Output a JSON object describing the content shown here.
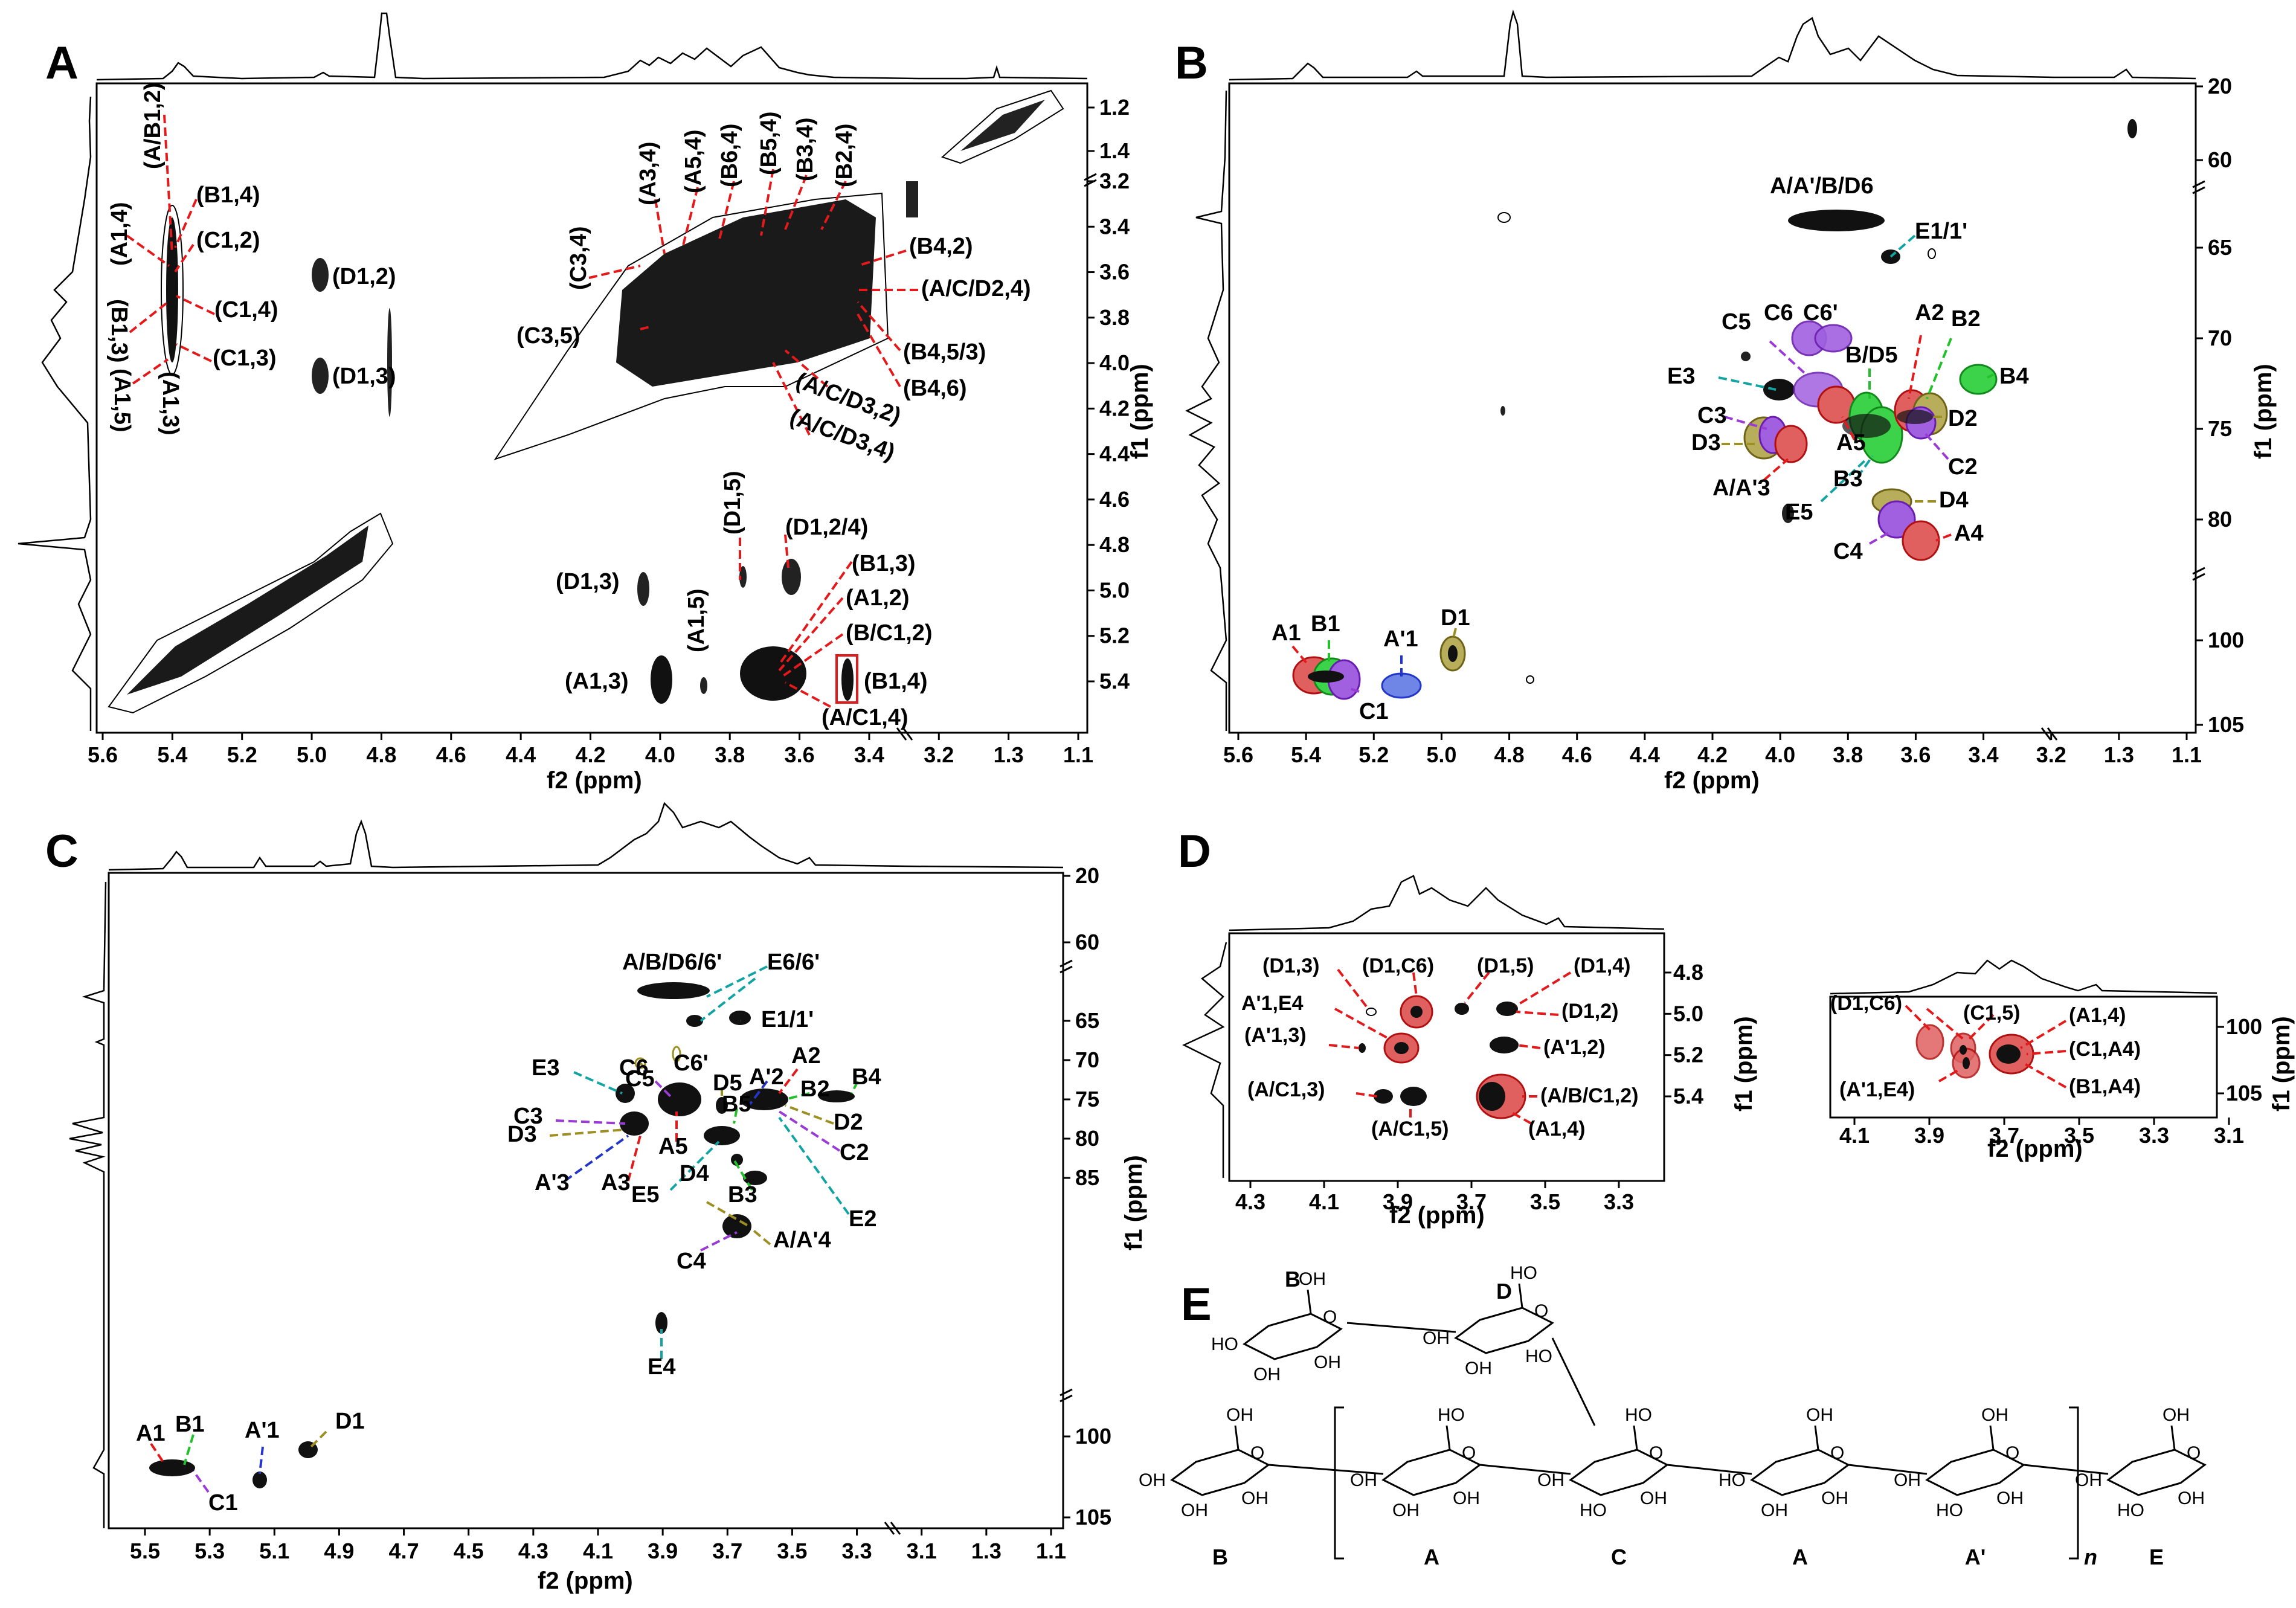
{
  "panels": {
    "A": {
      "letter": "A",
      "x_ticks": [
        "5.6",
        "5.4",
        "5.2",
        "5.0",
        "4.8",
        "4.6",
        "4.4",
        "4.2",
        "4.0",
        "3.8",
        "3.6",
        "3.4",
        "3.2",
        "1.3",
        "1.1"
      ],
      "y_ticks_top": [
        "1.2",
        "1.4"
      ],
      "y_ticks": [
        "3.2",
        "3.4",
        "3.6",
        "3.8",
        "4.0",
        "4.2",
        "4.4",
        "4.6",
        "4.8",
        "5.0",
        "5.2",
        "5.4"
      ],
      "xlabel": "f2 (ppm)",
      "ylabel": "f1 (ppm)",
      "labels": [
        "(A/B1,2)",
        "(B1,4)",
        "(A1,4)",
        "(C1,2)",
        "(C1,4)",
        "(B1,3)",
        "(C1,3)",
        "(A1,5)",
        "(A1,3)",
        "(D1,2)",
        "(D1,3)",
        "(C3,4)",
        "(A3,4)",
        "(A5,4)",
        "(B6,4)",
        "(B5,4)",
        "(B3,4)",
        "(B2,4)",
        "(B4,2)",
        "(A/C/D2,4)",
        "(C3,5)",
        "(B4,5/3)",
        "(B4,6)",
        "(A/C/D3,2)",
        "(A/C/D3,4)",
        "(D1,5)",
        "(D1,2/4)",
        "(B1,3)",
        "(D1,3)",
        "(A1,2)",
        "(A1,5)",
        "(B/C1,2)",
        "(A1,3)",
        "(B1,4)",
        "(A/C1,4)"
      ]
    },
    "B": {
      "letter": "B",
      "x_ticks": [
        "5.6",
        "5.4",
        "5.2",
        "5.0",
        "4.8",
        "4.6",
        "4.4",
        "4.2",
        "4.0",
        "3.8",
        "3.6",
        "3.4",
        "3.2",
        "1.3",
        "1.1"
      ],
      "y_ticks": [
        "20",
        "60",
        "65",
        "70",
        "75",
        "80",
        "100",
        "105"
      ],
      "xlabel": "f2 (ppm)",
      "ylabel": "f1 (ppm)",
      "labels": [
        "A/A'/B/D6",
        "E1/1'",
        "C5",
        "C6",
        "C6'",
        "A2",
        "B2",
        "B/D5",
        "E3",
        "B4",
        "C3",
        "D2",
        "D3",
        "A5",
        "C2",
        "A/A'3",
        "B3",
        "E5",
        "D4",
        "C4",
        "A4",
        "A1",
        "B1",
        "A'1",
        "D1",
        "C1"
      ]
    },
    "C": {
      "letter": "C",
      "x_ticks": [
        "5.5",
        "5.3",
        "5.1",
        "4.9",
        "4.7",
        "4.5",
        "4.3",
        "4.1",
        "3.9",
        "3.7",
        "3.5",
        "3.3",
        "3.1",
        "1.3",
        "1.1"
      ],
      "y_ticks": [
        "20",
        "60",
        "65",
        "70",
        "75",
        "80",
        "85",
        "100",
        "105"
      ],
      "xlabel": "f2 (ppm)",
      "ylabel": "f1 (ppm)",
      "labels": [
        "A/B/D6/6'",
        "E6/6'",
        "E1/1'",
        "C6",
        "C6'",
        "A2",
        "A'2",
        "E3",
        "C5",
        "D5",
        "B2",
        "B4",
        "B5",
        "C3",
        "D3",
        "A5",
        "D2",
        "C2",
        "A'3",
        "A3",
        "E5",
        "D4",
        "B3",
        "E2",
        "A/A'4",
        "C4",
        "E4",
        "A1",
        "B1",
        "A'1",
        "D1",
        "C1"
      ]
    },
    "D": {
      "letter": "D",
      "left": {
        "x_ticks": [
          "4.3",
          "4.1",
          "3.9",
          "3.7",
          "3.5",
          "3.3"
        ],
        "y_ticks": [
          "4.8",
          "5.0",
          "5.2",
          "5.4"
        ],
        "xlabel": "f2 (ppm)",
        "ylabel": "f1 (ppm)",
        "labels": [
          "(D1,3)",
          "(D1,C6)",
          "(D1,5)",
          "(D1,4)",
          "A'1,E4",
          "(D1,2)",
          "(A'1,3)",
          "(A'1,2)",
          "(A/C1,3)",
          "(A/B/C1,2)",
          "(A/C1,5)",
          "(A1,4)"
        ]
      },
      "right": {
        "x_ticks": [
          "4.1",
          "3.9",
          "3.7",
          "3.5",
          "3.3",
          "3.1"
        ],
        "y_ticks": [
          "100",
          "105"
        ],
        "xlabel": "f2 (ppm)",
        "ylabel": "f1 (ppm)",
        "labels": [
          "(D1,C6)",
          "(C1,5)",
          "(A1,4)",
          "(C1,A4)",
          "(A'1,E4)",
          "(B1,A4)"
        ]
      }
    },
    "E": {
      "letter": "E",
      "residues": [
        "B",
        "D",
        "B",
        "A",
        "C",
        "A",
        "A'",
        "E"
      ],
      "repeat": "n",
      "substituents": [
        "OH",
        "HO",
        "OH",
        "OH",
        "HO",
        "OH",
        "OH",
        "HO",
        "OH",
        "OH",
        "OH",
        "OH",
        "HO",
        "OH",
        "OH",
        "OH",
        "HO",
        "OH",
        "HO",
        "OH",
        "OH",
        "HO",
        "OH",
        "OH",
        "OH",
        "OH",
        "HO",
        "OH",
        "OH",
        "OH",
        "HO",
        "OH",
        "OH",
        "OH",
        "HO",
        "OH",
        "OH",
        "OH",
        "OH",
        "OH"
      ]
    }
  },
  "colors": {
    "red": "#e31a1c",
    "green": "#22c02a",
    "blue": "#2336c8",
    "purple": "#9a3bd6",
    "olive": "#9c8f24",
    "teal": "#14a3a3",
    "fill_red": "#e06060",
    "fill_green": "#3cd34a",
    "fill_blue": "#6f86e6",
    "fill_purple": "#a060e0",
    "fill_olive": "#b8ad5a"
  }
}
